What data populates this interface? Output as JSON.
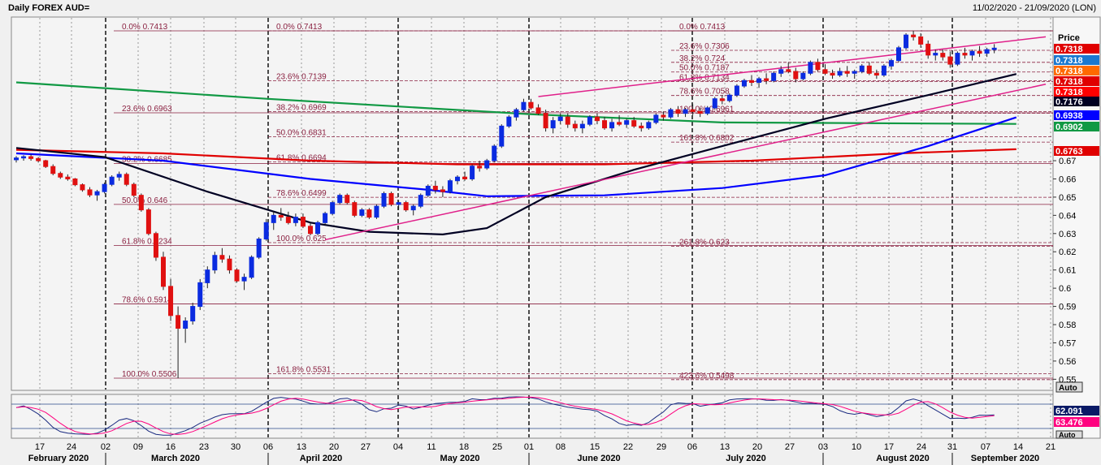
{
  "header": {
    "title": "Daily FOREX AUD=",
    "date_range": "11/02/2020 - 21/09/2020 (LON)"
  },
  "price_axis": {
    "title": "Price",
    "ticks": [
      "0.67",
      "0.66",
      "0.65",
      "0.64",
      "0.63",
      "0.62",
      "0.61",
      "0.6",
      "0.59",
      "0.58",
      "0.57",
      "0.56",
      "0.55"
    ],
    "auto_label": "Auto",
    "tags": [
      {
        "text": "0.7318",
        "color": "#e00000"
      },
      {
        "text": "0.7318",
        "color": "#1a78d0"
      },
      {
        "text": "0.7318",
        "color": "#ff6a00"
      },
      {
        "text": "0.7318",
        "color": "#e00000"
      },
      {
        "text": "0.7318",
        "color": "#ff0000"
      },
      {
        "text": "0.7176",
        "color": "#000022"
      },
      {
        "text": "0.6938",
        "color": "#0000ff"
      },
      {
        "text": "0.6902",
        "color": "#119944"
      },
      {
        "text": "0.6763",
        "color": "#e00000"
      }
    ]
  },
  "oscillator": {
    "tags": [
      {
        "text": "62.091",
        "color": "#0a1a66"
      },
      {
        "text": "63.476",
        "color": "#ff007f"
      }
    ],
    "auto_label": "Auto"
  },
  "x_axis": {
    "days": [
      "17",
      "24",
      "02",
      "09",
      "16",
      "23",
      "30",
      "06",
      "13",
      "20",
      "27",
      "04",
      "11",
      "18",
      "25",
      "01",
      "08",
      "15",
      "22",
      "29",
      "06",
      "13",
      "20",
      "27",
      "03",
      "10",
      "17",
      "24",
      "31",
      "07",
      "14",
      "21"
    ],
    "months": [
      "February 2020",
      "March 2020",
      "April 2020",
      "May 2020",
      "June 2020",
      "July 2020",
      "August 2020",
      "September 2020"
    ]
  },
  "fib_labels": [
    "0.0%  0.7413",
    "23.6%  0.6963",
    "38.2%  0.6685",
    "50.0%  0.646",
    "61.8%  0.6234",
    "78.6%  0.5914",
    "100.0%  0.5506",
    "0.0%  0.7413",
    "23.6%  0.7139",
    "38.2%  0.6969",
    "50.0%  0.6831",
    "61.8%  0.6694",
    "78.6%  0.6499",
    "100.0%  0.625",
    "161.8%  0.5531",
    "0.0%  0.7413",
    "23.6%  0.7306",
    "38.2%  0.724",
    "50.0%  0.7187",
    "61.8%  0.7134",
    "78.6%  0.7058",
    "100.0%  0.6961",
    "161.8%  0.6802",
    "261.8%  0.623",
    "423.6%  0.5498"
  ],
  "chart_data": {
    "type": "candlestick",
    "title": "Daily FOREX AUD=",
    "ylabel": "Price",
    "ylim": [
      0.545,
      0.745
    ],
    "grid": false,
    "last_close": 0.7318,
    "ohlc": [
      [
        0.6705,
        0.6725,
        0.669,
        0.6715
      ],
      [
        0.6715,
        0.673,
        0.67,
        0.6722
      ],
      [
        0.6722,
        0.6735,
        0.67,
        0.6712
      ],
      [
        0.6712,
        0.672,
        0.669,
        0.67
      ],
      [
        0.67,
        0.6705,
        0.666,
        0.6668
      ],
      [
        0.6668,
        0.668,
        0.662,
        0.663
      ],
      [
        0.663,
        0.664,
        0.66,
        0.661
      ],
      [
        0.661,
        0.6625,
        0.659,
        0.66
      ],
      [
        0.66,
        0.6605,
        0.656,
        0.6568
      ],
      [
        0.6568,
        0.6575,
        0.653,
        0.654
      ],
      [
        0.654,
        0.6555,
        0.65,
        0.6512
      ],
      [
        0.6512,
        0.654,
        0.648,
        0.653
      ],
      [
        0.653,
        0.658,
        0.652,
        0.657
      ],
      [
        0.657,
        0.662,
        0.656,
        0.661
      ],
      [
        0.661,
        0.664,
        0.659,
        0.6625
      ],
      [
        0.6625,
        0.6635,
        0.656,
        0.657
      ],
      [
        0.657,
        0.658,
        0.65,
        0.651
      ],
      [
        0.651,
        0.652,
        0.642,
        0.643
      ],
      [
        0.643,
        0.644,
        0.629,
        0.63
      ],
      [
        0.63,
        0.631,
        0.615,
        0.617
      ],
      [
        0.617,
        0.62,
        0.599,
        0.601
      ],
      [
        0.601,
        0.605,
        0.582,
        0.585
      ],
      [
        0.585,
        0.59,
        0.5506,
        0.578
      ],
      [
        0.578,
        0.584,
        0.57,
        0.582
      ],
      [
        0.582,
        0.592,
        0.58,
        0.59
      ],
      [
        0.59,
        0.605,
        0.588,
        0.603
      ],
      [
        0.603,
        0.612,
        0.6,
        0.61
      ],
      [
        0.61,
        0.62,
        0.608,
        0.618
      ],
      [
        0.618,
        0.622,
        0.614,
        0.616
      ],
      [
        0.616,
        0.618,
        0.608,
        0.61
      ],
      [
        0.61,
        0.611,
        0.603,
        0.604
      ],
      [
        0.604,
        0.608,
        0.599,
        0.606
      ],
      [
        0.606,
        0.618,
        0.605,
        0.617
      ],
      [
        0.617,
        0.628,
        0.616,
        0.627
      ],
      [
        0.627,
        0.638,
        0.626,
        0.636
      ],
      [
        0.636,
        0.642,
        0.632,
        0.64
      ],
      [
        0.64,
        0.644,
        0.637,
        0.639
      ],
      [
        0.639,
        0.642,
        0.635,
        0.636
      ],
      [
        0.636,
        0.641,
        0.634,
        0.639
      ],
      [
        0.639,
        0.641,
        0.633,
        0.634
      ],
      [
        0.634,
        0.636,
        0.629,
        0.63
      ],
      [
        0.63,
        0.637,
        0.629,
        0.636
      ],
      [
        0.636,
        0.642,
        0.635,
        0.641
      ],
      [
        0.641,
        0.648,
        0.64,
        0.647
      ],
      [
        0.647,
        0.652,
        0.646,
        0.651
      ],
      [
        0.651,
        0.652,
        0.646,
        0.647
      ],
      [
        0.647,
        0.648,
        0.639,
        0.64
      ],
      [
        0.64,
        0.644,
        0.639,
        0.643
      ],
      [
        0.643,
        0.644,
        0.638,
        0.639
      ],
      [
        0.639,
        0.646,
        0.638,
        0.645
      ],
      [
        0.645,
        0.653,
        0.644,
        0.652
      ],
      [
        0.652,
        0.653,
        0.645,
        0.646
      ],
      [
        0.646,
        0.648,
        0.643,
        0.647
      ],
      [
        0.647,
        0.648,
        0.642,
        0.643
      ],
      [
        0.643,
        0.646,
        0.64,
        0.645
      ],
      [
        0.645,
        0.652,
        0.644,
        0.651
      ],
      [
        0.651,
        0.657,
        0.65,
        0.656
      ],
      [
        0.656,
        0.659,
        0.652,
        0.654
      ],
      [
        0.654,
        0.656,
        0.65,
        0.653
      ],
      [
        0.653,
        0.66,
        0.652,
        0.659
      ],
      [
        0.659,
        0.662,
        0.657,
        0.661
      ],
      [
        0.661,
        0.664,
        0.659,
        0.66
      ],
      [
        0.66,
        0.668,
        0.659,
        0.667
      ],
      [
        0.667,
        0.67,
        0.664,
        0.666
      ],
      [
        0.666,
        0.671,
        0.665,
        0.67
      ],
      [
        0.67,
        0.679,
        0.669,
        0.678
      ],
      [
        0.678,
        0.69,
        0.677,
        0.689
      ],
      [
        0.689,
        0.695,
        0.688,
        0.694
      ],
      [
        0.694,
        0.699,
        0.692,
        0.698
      ],
      [
        0.698,
        0.704,
        0.697,
        0.702
      ],
      [
        0.702,
        0.704,
        0.698,
        0.699
      ],
      [
        0.699,
        0.701,
        0.695,
        0.696
      ],
      [
        0.696,
        0.698,
        0.686,
        0.688
      ],
      [
        0.688,
        0.694,
        0.685,
        0.692
      ],
      [
        0.692,
        0.696,
        0.69,
        0.694
      ],
      [
        0.694,
        0.696,
        0.688,
        0.69
      ],
      [
        0.69,
        0.692,
        0.686,
        0.688
      ],
      [
        0.688,
        0.692,
        0.685,
        0.69
      ],
      [
        0.69,
        0.695,
        0.689,
        0.694
      ],
      [
        0.694,
        0.696,
        0.69,
        0.692
      ],
      [
        0.692,
        0.694,
        0.687,
        0.688
      ],
      [
        0.688,
        0.693,
        0.686,
        0.691
      ],
      [
        0.691,
        0.695,
        0.689,
        0.69
      ],
      [
        0.69,
        0.693,
        0.688,
        0.692
      ],
      [
        0.692,
        0.694,
        0.688,
        0.689
      ],
      [
        0.689,
        0.691,
        0.686,
        0.688
      ],
      [
        0.688,
        0.692,
        0.687,
        0.691
      ],
      [
        0.691,
        0.696,
        0.69,
        0.695
      ],
      [
        0.695,
        0.697,
        0.692,
        0.694
      ],
      [
        0.694,
        0.699,
        0.693,
        0.698
      ],
      [
        0.698,
        0.7,
        0.694,
        0.696
      ],
      [
        0.696,
        0.699,
        0.694,
        0.698
      ],
      [
        0.698,
        0.701,
        0.695,
        0.697
      ],
      [
        0.697,
        0.699,
        0.694,
        0.696
      ],
      [
        0.696,
        0.7,
        0.695,
        0.699
      ],
      [
        0.699,
        0.705,
        0.698,
        0.704
      ],
      [
        0.704,
        0.706,
        0.701,
        0.703
      ],
      [
        0.703,
        0.707,
        0.702,
        0.706
      ],
      [
        0.706,
        0.712,
        0.705,
        0.711
      ],
      [
        0.711,
        0.715,
        0.71,
        0.714
      ],
      [
        0.714,
        0.717,
        0.711,
        0.713
      ],
      [
        0.713,
        0.716,
        0.71,
        0.715
      ],
      [
        0.715,
        0.718,
        0.712,
        0.714
      ],
      [
        0.714,
        0.719,
        0.713,
        0.718
      ],
      [
        0.718,
        0.722,
        0.716,
        0.72
      ],
      [
        0.72,
        0.724,
        0.718,
        0.719
      ],
      [
        0.719,
        0.721,
        0.713,
        0.715
      ],
      [
        0.715,
        0.719,
        0.714,
        0.718
      ],
      [
        0.718,
        0.725,
        0.717,
        0.724
      ],
      [
        0.724,
        0.726,
        0.719,
        0.72
      ],
      [
        0.72,
        0.723,
        0.717,
        0.718
      ],
      [
        0.718,
        0.72,
        0.715,
        0.717
      ],
      [
        0.717,
        0.721,
        0.716,
        0.719
      ],
      [
        0.719,
        0.722,
        0.716,
        0.718
      ],
      [
        0.718,
        0.72,
        0.715,
        0.719
      ],
      [
        0.719,
        0.723,
        0.718,
        0.722
      ],
      [
        0.722,
        0.724,
        0.717,
        0.718
      ],
      [
        0.718,
        0.72,
        0.715,
        0.717
      ],
      [
        0.717,
        0.723,
        0.716,
        0.722
      ],
      [
        0.722,
        0.726,
        0.72,
        0.725
      ],
      [
        0.725,
        0.733,
        0.724,
        0.732
      ],
      [
        0.732,
        0.74,
        0.731,
        0.739
      ],
      [
        0.739,
        0.7413,
        0.736,
        0.738
      ],
      [
        0.738,
        0.74,
        0.732,
        0.734
      ],
      [
        0.734,
        0.736,
        0.726,
        0.728
      ],
      [
        0.728,
        0.731,
        0.725,
        0.729
      ],
      [
        0.729,
        0.731,
        0.725,
        0.727
      ],
      [
        0.727,
        0.73,
        0.721,
        0.723
      ],
      [
        0.723,
        0.73,
        0.722,
        0.729
      ],
      [
        0.729,
        0.732,
        0.726,
        0.728
      ],
      [
        0.728,
        0.731,
        0.725,
        0.73
      ],
      [
        0.73,
        0.733,
        0.727,
        0.729
      ],
      [
        0.729,
        0.732,
        0.727,
        0.731
      ],
      [
        0.731,
        0.734,
        0.729,
        0.7318
      ]
    ],
    "moving_averages": [
      {
        "color": "#119944",
        "points": [
          [
            0,
            0.713
          ],
          [
            34,
            0.704
          ],
          [
            70,
            0.6955
          ],
          [
            96,
            0.691
          ],
          [
            136,
            0.6902
          ]
        ]
      },
      {
        "color": "#e00000",
        "points": [
          [
            0,
            0.676
          ],
          [
            20,
            0.674
          ],
          [
            40,
            0.67
          ],
          [
            60,
            0.668
          ],
          [
            80,
            0.668
          ],
          [
            100,
            0.67
          ],
          [
            120,
            0.674
          ],
          [
            136,
            0.6763
          ]
        ]
      },
      {
        "color": "#0000ff",
        "points": [
          [
            0,
            0.674
          ],
          [
            20,
            0.67
          ],
          [
            40,
            0.66
          ],
          [
            56,
            0.654
          ],
          [
            64,
            0.6505
          ],
          [
            80,
            0.651
          ],
          [
            96,
            0.655
          ],
          [
            110,
            0.662
          ],
          [
            124,
            0.678
          ],
          [
            136,
            0.6938
          ]
        ]
      },
      {
        "color": "#000022",
        "points": [
          [
            0,
            0.677
          ],
          [
            12,
            0.672
          ],
          [
            26,
            0.653
          ],
          [
            40,
            0.636
          ],
          [
            48,
            0.631
          ],
          [
            58,
            0.6295
          ],
          [
            64,
            0.633
          ],
          [
            72,
            0.65
          ],
          [
            84,
            0.665
          ],
          [
            96,
            0.678
          ],
          [
            110,
            0.693
          ],
          [
            124,
            0.706
          ],
          [
            136,
            0.7176
          ]
        ]
      }
    ],
    "trendlines": [
      {
        "from": [
          42,
          0.6266
        ],
        "to": [
          140,
          0.712
        ]
      },
      {
        "from": [
          71,
          0.7052
        ],
        "to": [
          140,
          0.738
        ]
      }
    ],
    "fib_levels": [
      {
        "group": 1,
        "levels": [
          [
            "0.0%",
            0.7413
          ],
          [
            "23.6%",
            0.6963
          ],
          [
            "38.2%",
            0.6685
          ],
          [
            "50.0%",
            0.646
          ],
          [
            "61.8%",
            0.6234
          ],
          [
            "78.6%",
            0.5914
          ],
          [
            "100.0%",
            0.5506
          ]
        ]
      },
      {
        "group": 2,
        "levels": [
          [
            "0.0%",
            0.7413
          ],
          [
            "23.6%",
            0.7139
          ],
          [
            "38.2%",
            0.6969
          ],
          [
            "50.0%",
            0.6831
          ],
          [
            "61.8%",
            0.6694
          ],
          [
            "78.6%",
            0.6499
          ],
          [
            "100.0%",
            0.625
          ],
          [
            "161.8%",
            0.5531
          ]
        ]
      },
      {
        "group": 3,
        "levels": [
          [
            "0.0%",
            0.7413
          ],
          [
            "23.6%",
            0.7306
          ],
          [
            "38.2%",
            0.724
          ],
          [
            "50.0%",
            0.7187
          ],
          [
            "61.8%",
            0.7134
          ],
          [
            "78.6%",
            0.7058
          ],
          [
            "100.0%",
            0.6961
          ],
          [
            "161.8%",
            0.6802
          ],
          [
            "261.8%",
            0.623
          ],
          [
            "423.6%",
            0.5498
          ]
        ]
      }
    ],
    "oscillator": {
      "ylim": [
        0,
        100
      ],
      "last": [
        62.091,
        63.476
      ]
    }
  }
}
